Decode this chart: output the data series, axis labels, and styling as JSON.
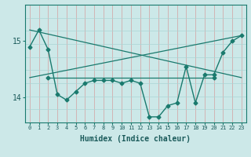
{
  "xlabel": "Humidex (Indice chaleur)",
  "ylabel": "",
  "background_color": "#cce8e8",
  "line_color": "#1a7a6e",
  "grid_color_v": "#d4a0a0",
  "grid_color_h": "#aad4d4",
  "xlim": [
    -0.5,
    23.5
  ],
  "ylim": [
    13.55,
    15.65
  ],
  "yticks": [
    14,
    15
  ],
  "xticks": [
    0,
    1,
    2,
    3,
    4,
    5,
    6,
    7,
    8,
    9,
    10,
    11,
    12,
    13,
    14,
    15,
    16,
    17,
    18,
    19,
    20,
    21,
    22,
    23
  ],
  "series_main": {
    "x": [
      0,
      1,
      2,
      3,
      4,
      5,
      6,
      7,
      8,
      9,
      10,
      11,
      12,
      13,
      14,
      15,
      16,
      17,
      18,
      19,
      20,
      21,
      22,
      23
    ],
    "y": [
      14.9,
      15.2,
      14.85,
      14.05,
      13.95,
      14.1,
      14.25,
      14.3,
      14.3,
      14.3,
      14.25,
      14.3,
      14.25,
      13.65,
      13.65,
      13.85,
      13.9,
      14.55,
      13.9,
      14.4,
      14.4,
      14.8,
      15.0,
      15.1
    ],
    "marker": "D",
    "markersize": 2.5,
    "linewidth": 1.0,
    "color": "#1a7a6e"
  },
  "series_straight": [
    {
      "x": [
        0,
        23
      ],
      "y": [
        15.2,
        14.35
      ],
      "linewidth": 0.9,
      "color": "#1a7a6e"
    },
    {
      "x": [
        0,
        23
      ],
      "y": [
        14.35,
        15.1
      ],
      "linewidth": 0.9,
      "color": "#1a7a6e"
    },
    {
      "x": [
        2,
        20
      ],
      "y": [
        14.35,
        14.35
      ],
      "linewidth": 0.9,
      "color": "#1a7a6e",
      "marker": "D",
      "markersize": 2.5
    }
  ]
}
